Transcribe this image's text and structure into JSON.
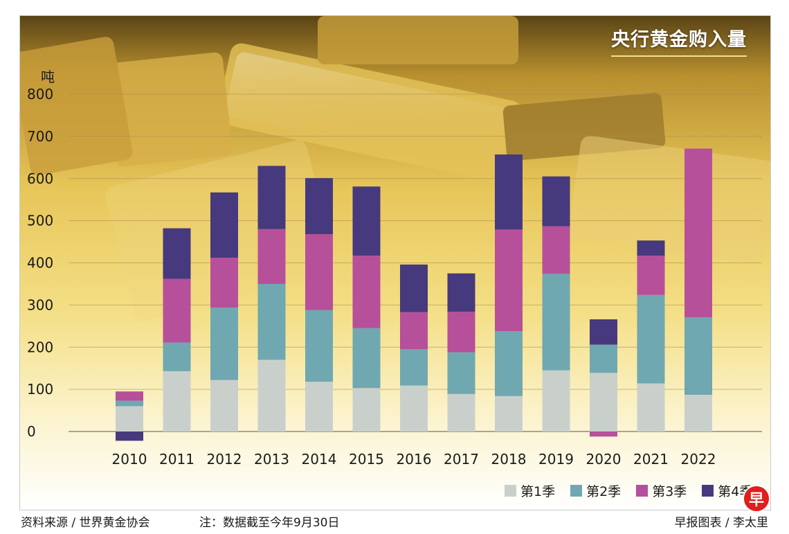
{
  "title": "央行黄金购入量",
  "unit_label": "吨",
  "source": "资料来源 / 世界黄金协会",
  "note": "注：数据截至今年9月30日",
  "credit": "早报图表 / 李太里",
  "logo_text": "早",
  "colors": {
    "q1": "#c9d0cc",
    "q2": "#6fa8b0",
    "q3": "#b6509a",
    "q4": "#46397e"
  },
  "chart_data": {
    "type": "bar",
    "stacked": true,
    "title": "央行黄金购入量",
    "ylabel": "吨",
    "ylim": [
      0,
      800
    ],
    "yticks": [
      0,
      100,
      200,
      300,
      400,
      500,
      600,
      700,
      800
    ],
    "categories": [
      "2010",
      "2011",
      "2012",
      "2013",
      "2014",
      "2015",
      "2016",
      "2017",
      "2018",
      "2019",
      "2020",
      "2021",
      "2022"
    ],
    "legend_position": "bottom-right",
    "grid": true,
    "series": [
      {
        "name": "第1季",
        "color_key": "q1",
        "values": [
          60,
          143,
          122,
          170,
          118,
          103,
          109,
          89,
          84,
          145,
          139,
          114,
          87
        ]
      },
      {
        "name": "第2季",
        "color_key": "q2",
        "values": [
          13,
          68,
          172,
          180,
          170,
          142,
          86,
          99,
          154,
          229,
          67,
          210,
          184
        ]
      },
      {
        "name": "第3季",
        "color_key": "q3",
        "values": [
          22,
          151,
          118,
          130,
          180,
          172,
          88,
          96,
          241,
          113,
          -12,
          93,
          400
        ]
      },
      {
        "name": "第4季",
        "color_key": "q4",
        "values": [
          -22,
          120,
          155,
          150,
          133,
          164,
          113,
          91,
          178,
          118,
          60,
          36,
          0
        ]
      }
    ]
  }
}
